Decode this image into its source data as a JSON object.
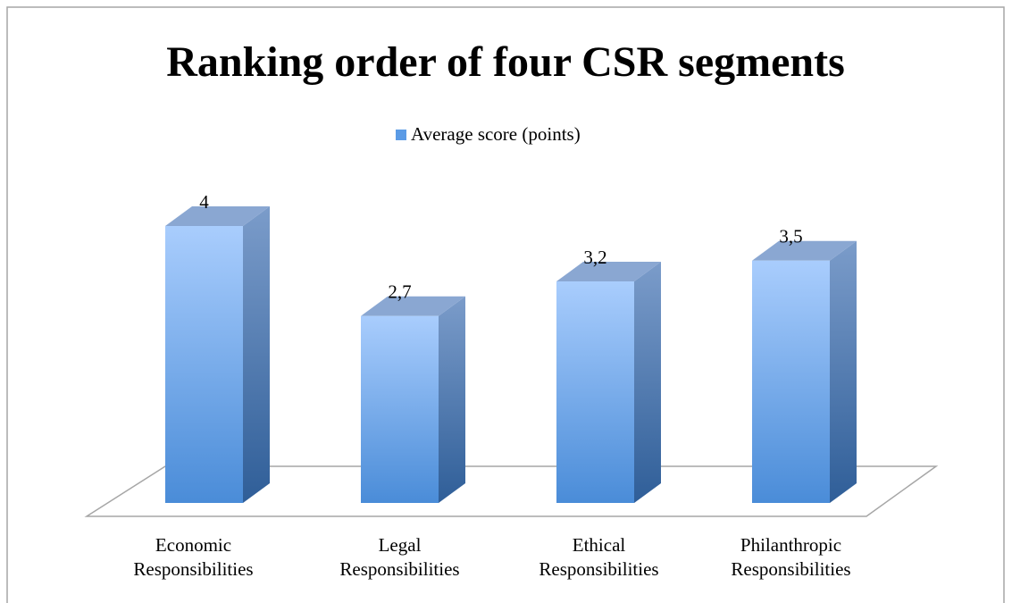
{
  "chart_data": {
    "type": "bar3d",
    "title": "Ranking order of four CSR segments",
    "categories": [
      "Economic Responsibilities",
      "Legal Responsibilities",
      "Ethical Responsibilities",
      "Philanthropic Responsibilities"
    ],
    "series": [
      {
        "name": "Average score (points)",
        "color": "#5b9be6",
        "values": [
          4,
          2.7,
          3.2,
          3.5
        ],
        "value_labels": [
          "4",
          "2,7",
          "3,2",
          "3,5"
        ]
      }
    ]
  }
}
